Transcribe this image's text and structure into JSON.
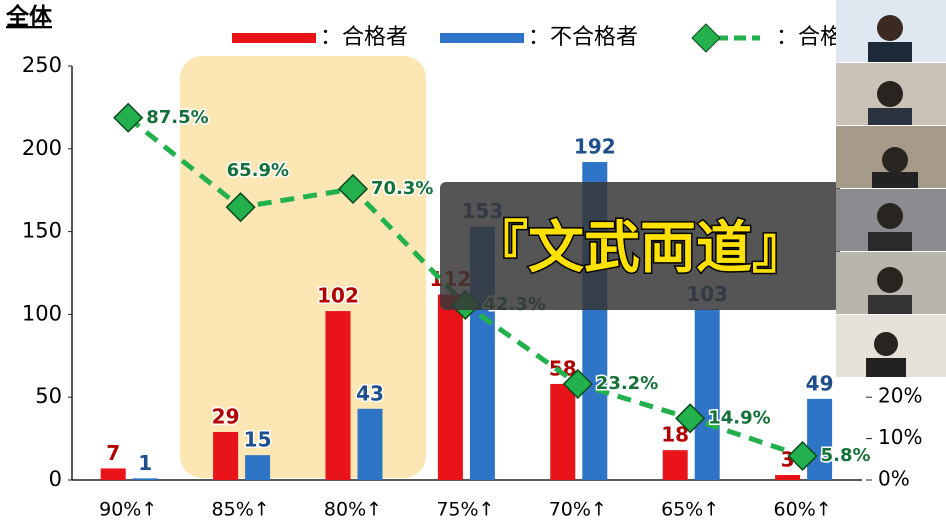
{
  "chart_data": {
    "type": "bar",
    "title": "全体",
    "categories": [
      "90%↑",
      "85%↑",
      "80%↑",
      "75%↑",
      "70%↑",
      "65%↑",
      "60%↑"
    ],
    "series": [
      {
        "name": "：合格者",
        "color": "#e8141a",
        "values": [
          7,
          29,
          102,
          112,
          58,
          18,
          3
        ]
      },
      {
        "name": "：不合格者",
        "color": "#2e75c8",
        "values": [
          1,
          15,
          43,
          153,
          192,
          103,
          49
        ]
      },
      {
        "name": "：合格率",
        "color": "#22b14c",
        "type": "line",
        "axis": "y2",
        "values": [
          87.5,
          65.9,
          70.3,
          42.3,
          23.2,
          14.9,
          5.8
        ],
        "value_labels": [
          "87.5%",
          "65.9%",
          "70.3%",
          "42.3%",
          "23.2%",
          "14.9%",
          "5.8%"
        ]
      }
    ],
    "ylim": [
      0,
      250
    ],
    "yticks": [
      0,
      50,
      100,
      150,
      200,
      250
    ],
    "y2lim": [
      0,
      100
    ],
    "y2ticks": [
      {
        "value": 0,
        "label": "0%"
      },
      {
        "value": 10,
        "label": "10%"
      },
      {
        "value": 20,
        "label": "20%"
      }
    ],
    "annotation": "『文武両道』"
  }
}
